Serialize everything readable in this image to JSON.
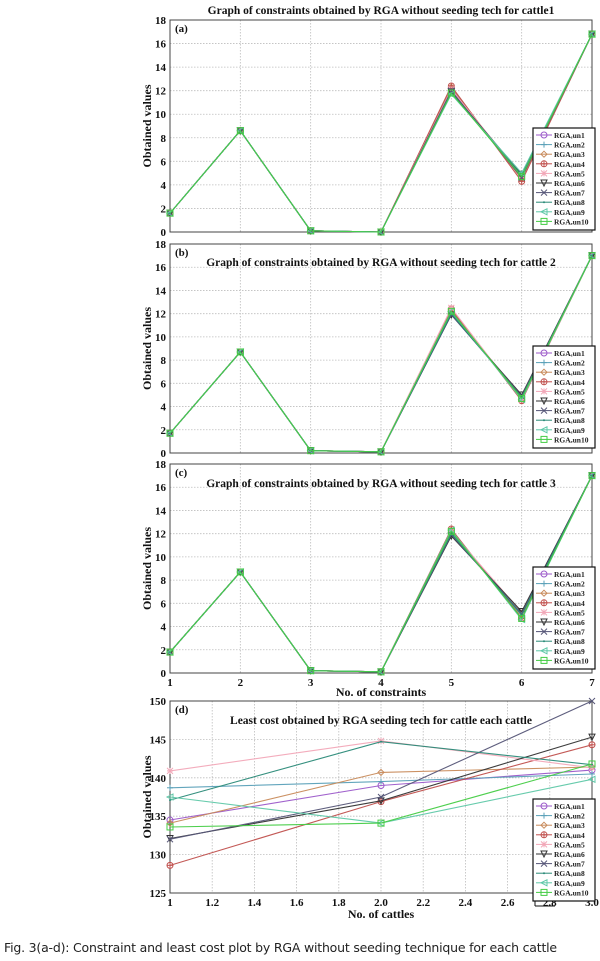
{
  "caption": "Fig. 3(a-d): Constraint and least cost plot by RGA without seeding technique for each cattle",
  "legend_labels": [
    "RGAₑun1",
    "RGAₑun2",
    "RGAₑun3",
    "RGAₑun4",
    "RGAₑun5",
    "RGAₑun6",
    "RGAₑun7",
    "RGAₑun8",
    "RGAₑun9",
    "RGAₑun10"
  ],
  "series_colors": [
    "#9b59c9",
    "#5aa0b8",
    "#c88a5a",
    "#c0504d",
    "#f2a8b8",
    "#333333",
    "#555577",
    "#2a8a78",
    "#5fc8a8",
    "#44cc44"
  ],
  "series_markers": [
    "circle",
    "plus",
    "diamond",
    "star-circle",
    "star",
    "triangle-down",
    "x",
    "dot",
    "triangle-left",
    "square"
  ],
  "chart_data": [
    {
      "type": "line",
      "panel": "(a)",
      "title": "Graph of constraints obtained by RGA without seeding tech for cattle1",
      "xlabel": "",
      "ylabel": "Obtained values",
      "x": [
        1,
        2,
        3,
        4,
        5,
        6,
        7
      ],
      "xlim": [
        1,
        7
      ],
      "ylim": [
        0,
        18
      ],
      "yticks": [
        0,
        2,
        4,
        6,
        8,
        10,
        12,
        14,
        16,
        18
      ],
      "grid": true,
      "legend_position": "lower right",
      "series": [
        {
          "name": "RGAsun1",
          "values": [
            1.6,
            8.6,
            0.1,
            0.0,
            12.2,
            4.6,
            16.8
          ]
        },
        {
          "name": "RGAsun2",
          "values": [
            1.6,
            8.6,
            0.1,
            0.0,
            12.0,
            4.7,
            16.8
          ]
        },
        {
          "name": "RGAsun3",
          "values": [
            1.6,
            8.6,
            0.1,
            0.0,
            12.3,
            4.5,
            16.8
          ]
        },
        {
          "name": "RGAsun4",
          "values": [
            1.6,
            8.6,
            0.1,
            0.0,
            12.4,
            4.3,
            16.8
          ]
        },
        {
          "name": "RGAsun5",
          "values": [
            1.6,
            8.6,
            0.1,
            0.0,
            12.1,
            4.8,
            16.8
          ]
        },
        {
          "name": "RGAsun6",
          "values": [
            1.6,
            8.6,
            0.1,
            0.0,
            11.9,
            4.9,
            16.8
          ]
        },
        {
          "name": "RGAsun7",
          "values": [
            1.6,
            8.6,
            0.1,
            0.0,
            12.0,
            4.6,
            16.8
          ]
        },
        {
          "name": "RGAsun8",
          "values": [
            1.6,
            8.6,
            0.1,
            0.0,
            11.8,
            4.8,
            16.8
          ]
        },
        {
          "name": "RGAsun9",
          "values": [
            1.6,
            8.6,
            0.1,
            0.0,
            11.7,
            5.0,
            16.8
          ]
        },
        {
          "name": "RGAsun10",
          "values": [
            1.6,
            8.6,
            0.1,
            0.0,
            11.8,
            4.7,
            16.8
          ]
        }
      ]
    },
    {
      "type": "line",
      "panel": "(b)",
      "title": "Graph of constraints obtained by RGA without seeding tech for cattle 2",
      "xlabel": "",
      "ylabel": "Obtained values",
      "x": [
        1,
        2,
        3,
        4,
        5,
        6,
        7
      ],
      "xlim": [
        1,
        7
      ],
      "ylim": [
        0,
        18
      ],
      "yticks": [
        0,
        2,
        4,
        6,
        8,
        10,
        12,
        14,
        16,
        18
      ],
      "grid": true,
      "legend_position": "lower right",
      "series": [
        {
          "name": "RGAsun1",
          "values": [
            1.7,
            8.7,
            0.2,
            0.1,
            12.0,
            4.8,
            17.0
          ]
        },
        {
          "name": "RGAsun2",
          "values": [
            1.7,
            8.7,
            0.2,
            0.1,
            12.1,
            4.7,
            17.0
          ]
        },
        {
          "name": "RGAsun3",
          "values": [
            1.7,
            8.7,
            0.2,
            0.1,
            12.3,
            4.6,
            17.0
          ]
        },
        {
          "name": "RGAsun4",
          "values": [
            1.7,
            8.7,
            0.2,
            0.1,
            12.4,
            4.5,
            17.0
          ]
        },
        {
          "name": "RGAsun5",
          "values": [
            1.7,
            8.7,
            0.2,
            0.1,
            12.5,
            4.6,
            17.0
          ]
        },
        {
          "name": "RGAsun6",
          "values": [
            1.7,
            8.7,
            0.2,
            0.1,
            11.9,
            5.0,
            17.0
          ]
        },
        {
          "name": "RGAsun7",
          "values": [
            1.7,
            8.7,
            0.2,
            0.1,
            11.9,
            4.9,
            17.0
          ]
        },
        {
          "name": "RGAsun8",
          "values": [
            1.7,
            8.7,
            0.2,
            0.1,
            12.0,
            4.8,
            17.0
          ]
        },
        {
          "name": "RGAsun9",
          "values": [
            1.7,
            8.7,
            0.2,
            0.1,
            12.2,
            4.6,
            17.0
          ]
        },
        {
          "name": "RGAsun10",
          "values": [
            1.7,
            8.7,
            0.2,
            0.1,
            12.2,
            4.7,
            17.0
          ]
        }
      ]
    },
    {
      "type": "line",
      "panel": "(c)",
      "title": "Graph of constraints obtained by RGA without seeding tech for cattle 3",
      "xlabel": "No. of constraints",
      "ylabel": "Obtained values",
      "x": [
        1,
        2,
        3,
        4,
        5,
        6,
        7
      ],
      "xticks": [
        1,
        2,
        3,
        4,
        5,
        6,
        7
      ],
      "xlim": [
        1,
        7
      ],
      "ylim": [
        0,
        18
      ],
      "yticks": [
        0,
        2,
        4,
        6,
        8,
        10,
        12,
        14,
        16,
        18
      ],
      "grid": true,
      "legend_position": "lower right",
      "series": [
        {
          "name": "RGAsun1",
          "values": [
            1.8,
            8.7,
            0.2,
            0.1,
            12.0,
            5.0,
            17.0
          ]
        },
        {
          "name": "RGAsun2",
          "values": [
            1.8,
            8.7,
            0.2,
            0.1,
            12.1,
            4.9,
            17.0
          ]
        },
        {
          "name": "RGAsun3",
          "values": [
            1.8,
            8.7,
            0.2,
            0.1,
            12.3,
            4.8,
            17.0
          ]
        },
        {
          "name": "RGAsun4",
          "values": [
            1.8,
            8.7,
            0.2,
            0.1,
            12.4,
            4.7,
            17.0
          ]
        },
        {
          "name": "RGAsun5",
          "values": [
            1.8,
            8.7,
            0.2,
            0.1,
            12.2,
            5.2,
            17.0
          ]
        },
        {
          "name": "RGAsun6",
          "values": [
            1.8,
            8.7,
            0.2,
            0.1,
            11.8,
            5.3,
            17.0
          ]
        },
        {
          "name": "RGAsun7",
          "values": [
            1.8,
            8.7,
            0.2,
            0.1,
            11.9,
            5.1,
            17.0
          ]
        },
        {
          "name": "RGAsun8",
          "values": [
            1.8,
            8.7,
            0.2,
            0.1,
            12.0,
            5.0,
            17.0
          ]
        },
        {
          "name": "RGAsun9",
          "values": [
            1.8,
            8.7,
            0.2,
            0.1,
            12.3,
            4.6,
            17.0
          ]
        },
        {
          "name": "RGAsun10",
          "values": [
            1.8,
            8.7,
            0.2,
            0.1,
            12.2,
            4.7,
            17.0
          ]
        }
      ]
    },
    {
      "type": "line",
      "panel": "(d)",
      "title": "Least cost obtained by RGA seeding tech for cattle each cattle",
      "xlabel": "No. of cattles",
      "ylabel": "Obtained values",
      "x": [
        1.0,
        2.0,
        3.0
      ],
      "xticks": [
        1,
        1.2,
        1.4,
        1.6,
        1.8,
        2.0,
        2.2,
        2.4,
        2.6,
        2.8,
        3.0
      ],
      "xlim": [
        1,
        3
      ],
      "ylim": [
        125,
        150
      ],
      "yticks": [
        125,
        130,
        135,
        140,
        145,
        150
      ],
      "grid": true,
      "legend_position": "lower right",
      "series": [
        {
          "name": "RGAsun1",
          "values": [
            134.5,
            139.0,
            141.0
          ]
        },
        {
          "name": "RGAsun2",
          "values": [
            138.7,
            139.5,
            140.5
          ]
        },
        {
          "name": "RGAsun3",
          "values": [
            134.1,
            140.7,
            141.4
          ]
        },
        {
          "name": "RGAsun4",
          "values": [
            128.6,
            136.9,
            144.3
          ]
        },
        {
          "name": "RGAsun5",
          "values": [
            140.9,
            144.8,
            141.3
          ]
        },
        {
          "name": "RGAsun6",
          "values": [
            132.1,
            137.0,
            145.3
          ]
        },
        {
          "name": "RGAsun7",
          "values": [
            132.0,
            137.5,
            150.0
          ]
        },
        {
          "name": "RGAsun8",
          "values": [
            137.1,
            144.7,
            141.7
          ]
        },
        {
          "name": "RGAsun9",
          "values": [
            137.5,
            134.1,
            139.8
          ]
        },
        {
          "name": "RGAsun10",
          "values": [
            133.6,
            134.1,
            141.8
          ]
        }
      ]
    }
  ]
}
